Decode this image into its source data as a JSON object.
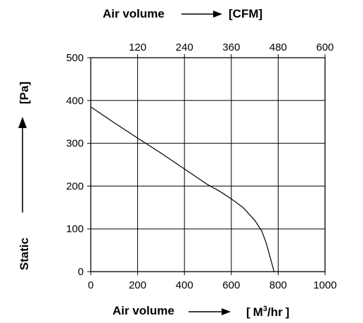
{
  "chart_data": {
    "type": "line",
    "title": "",
    "x_axis": {
      "label_prefix": "Air volume",
      "unit_base": "M",
      "unit_exp": "3",
      "unit_suffix": "/hr",
      "unit_open": "[",
      "unit_close": "]",
      "ticks": [
        0,
        200,
        400,
        600,
        800,
        1000
      ],
      "range": [
        0,
        1000
      ]
    },
    "x2_axis": {
      "label_prefix": "Air volume",
      "unit": "[CFM]",
      "ticks": [
        120,
        240,
        360,
        480,
        600
      ],
      "range": [
        0,
        600
      ]
    },
    "y_axis": {
      "label": "Static",
      "unit": "[Pa]",
      "ticks": [
        0,
        100,
        200,
        300,
        400,
        500
      ],
      "range": [
        0,
        500
      ]
    },
    "grid": true,
    "series": [
      {
        "x": [
          0,
          100,
          200,
          300,
          400,
          500,
          550,
          600,
          650,
          700,
          730,
          750,
          765,
          775,
          780,
          782,
          785
        ],
        "y": [
          385,
          348,
          312,
          277,
          240,
          203,
          188,
          170,
          150,
          120,
          95,
          65,
          35,
          15,
          5,
          0,
          0
        ]
      }
    ]
  }
}
